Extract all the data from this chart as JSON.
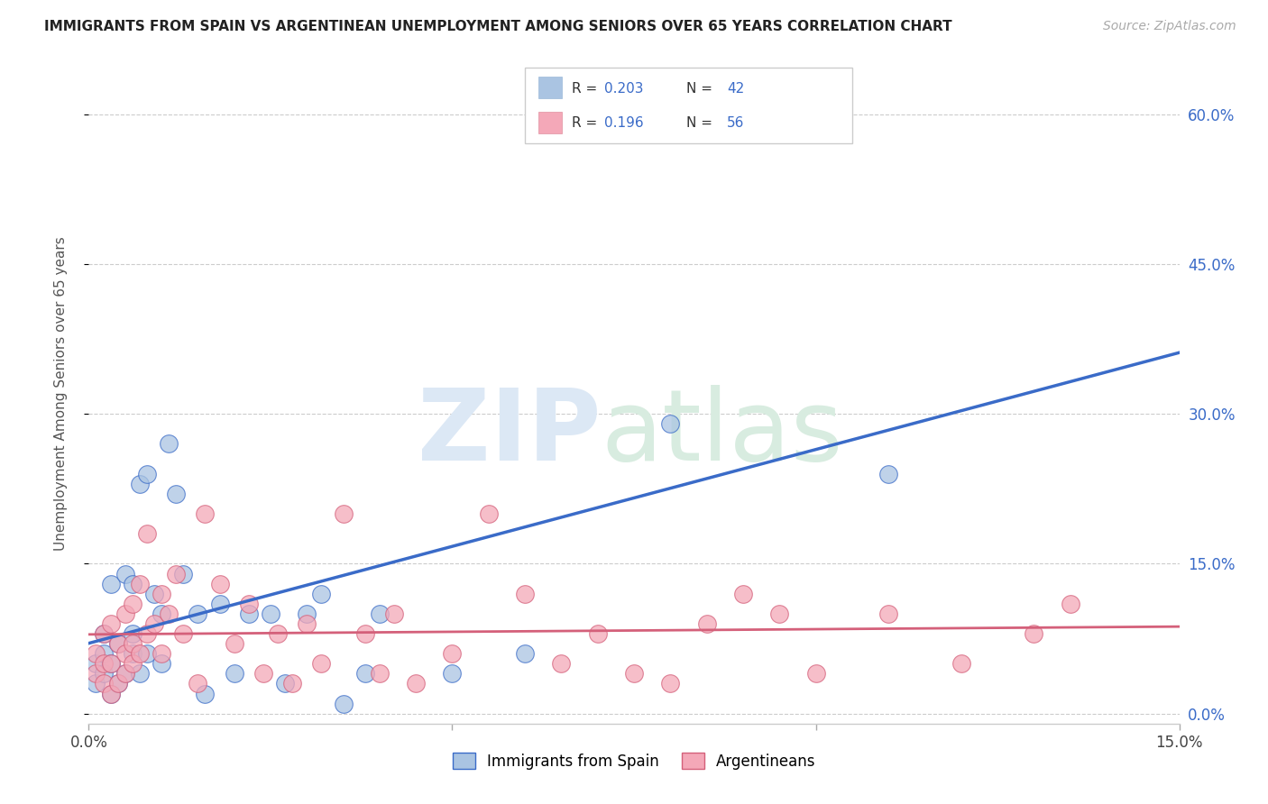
{
  "title": "IMMIGRANTS FROM SPAIN VS ARGENTINEAN UNEMPLOYMENT AMONG SENIORS OVER 65 YEARS CORRELATION CHART",
  "source": "Source: ZipAtlas.com",
  "ylabel": "Unemployment Among Seniors over 65 years",
  "ylabel_ticks": [
    "0.0%",
    "15.0%",
    "30.0%",
    "45.0%",
    "60.0%"
  ],
  "ylabel_vals": [
    0.0,
    0.15,
    0.3,
    0.45,
    0.6
  ],
  "xlim": [
    0.0,
    0.15
  ],
  "ylim": [
    -0.01,
    0.65
  ],
  "legend_label1": "Immigrants from Spain",
  "legend_label2": "Argentineans",
  "R1": "0.203",
  "N1": "42",
  "R2": "0.196",
  "N2": "56",
  "color_spain": "#aac4e2",
  "color_argentina": "#f4a8b8",
  "line_color_spain": "#3a6bc8",
  "line_color_argentina": "#d4607a",
  "spain_x": [
    0.001,
    0.001,
    0.002,
    0.002,
    0.002,
    0.003,
    0.003,
    0.003,
    0.004,
    0.004,
    0.005,
    0.005,
    0.006,
    0.006,
    0.006,
    0.007,
    0.007,
    0.008,
    0.008,
    0.009,
    0.01,
    0.01,
    0.011,
    0.012,
    0.013,
    0.015,
    0.016,
    0.018,
    0.02,
    0.022,
    0.025,
    0.027,
    0.03,
    0.032,
    0.035,
    0.038,
    0.04,
    0.05,
    0.06,
    0.065,
    0.08,
    0.11
  ],
  "spain_y": [
    0.03,
    0.05,
    0.04,
    0.06,
    0.08,
    0.02,
    0.05,
    0.13,
    0.03,
    0.07,
    0.04,
    0.14,
    0.06,
    0.08,
    0.13,
    0.04,
    0.23,
    0.06,
    0.24,
    0.12,
    0.1,
    0.05,
    0.27,
    0.22,
    0.14,
    0.1,
    0.02,
    0.11,
    0.04,
    0.1,
    0.1,
    0.03,
    0.1,
    0.12,
    0.01,
    0.04,
    0.1,
    0.04,
    0.06,
    0.59,
    0.29,
    0.24
  ],
  "argentina_x": [
    0.001,
    0.001,
    0.002,
    0.002,
    0.002,
    0.003,
    0.003,
    0.003,
    0.004,
    0.004,
    0.005,
    0.005,
    0.005,
    0.006,
    0.006,
    0.006,
    0.007,
    0.007,
    0.008,
    0.008,
    0.009,
    0.01,
    0.01,
    0.011,
    0.012,
    0.013,
    0.015,
    0.016,
    0.018,
    0.02,
    0.022,
    0.024,
    0.026,
    0.028,
    0.03,
    0.032,
    0.035,
    0.038,
    0.04,
    0.042,
    0.045,
    0.05,
    0.055,
    0.06,
    0.065,
    0.07,
    0.075,
    0.08,
    0.085,
    0.09,
    0.095,
    0.1,
    0.11,
    0.12,
    0.13,
    0.135
  ],
  "argentina_y": [
    0.04,
    0.06,
    0.03,
    0.05,
    0.08,
    0.02,
    0.05,
    0.09,
    0.03,
    0.07,
    0.04,
    0.06,
    0.1,
    0.05,
    0.07,
    0.11,
    0.06,
    0.13,
    0.08,
    0.18,
    0.09,
    0.12,
    0.06,
    0.1,
    0.14,
    0.08,
    0.03,
    0.2,
    0.13,
    0.07,
    0.11,
    0.04,
    0.08,
    0.03,
    0.09,
    0.05,
    0.2,
    0.08,
    0.04,
    0.1,
    0.03,
    0.06,
    0.2,
    0.12,
    0.05,
    0.08,
    0.04,
    0.03,
    0.09,
    0.12,
    0.1,
    0.04,
    0.1,
    0.05,
    0.08,
    0.11
  ]
}
